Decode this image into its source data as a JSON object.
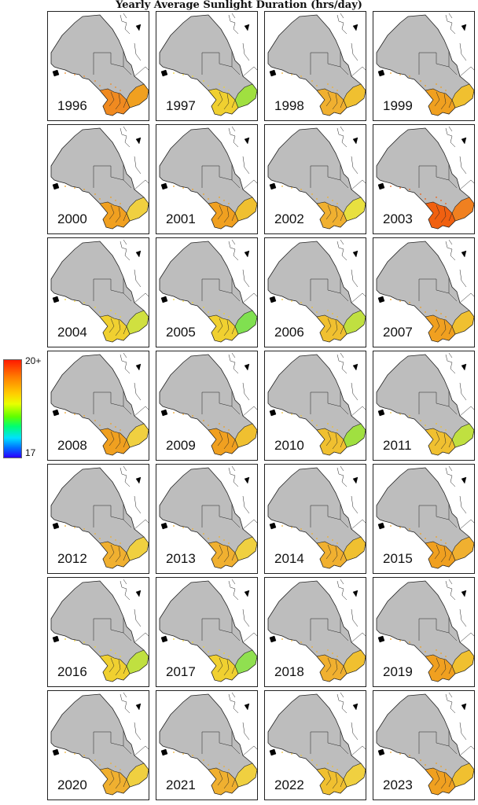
{
  "title": "Yearly Average Sunlight Duration (hrs/day)",
  "legend": {
    "max_label": "20+",
    "min_label": "17",
    "colorscale": [
      "#2a00ff",
      "#0070ff",
      "#00e0ff",
      "#00ff70",
      "#60ff00",
      "#e8ff00",
      "#ffd000",
      "#ff8000",
      "#ff1a00"
    ]
  },
  "map": {
    "land_color": "#bdbdbd",
    "border_color": "#222222"
  },
  "panels": [
    {
      "year": "1996",
      "south_color": "#f08a20",
      "east_color": "#f0a020"
    },
    {
      "year": "1997",
      "south_color": "#f0d030",
      "east_color": "#a0e040"
    },
    {
      "year": "1998",
      "south_color": "#f0b030",
      "east_color": "#f0c030"
    },
    {
      "year": "1999",
      "south_color": "#f0a020",
      "east_color": "#f0c030"
    },
    {
      "year": "2000",
      "south_color": "#f0a020",
      "east_color": "#f0d040"
    },
    {
      "year": "2001",
      "south_color": "#f0a020",
      "east_color": "#f0c030"
    },
    {
      "year": "2002",
      "south_color": "#f0b030",
      "east_color": "#e8e040"
    },
    {
      "year": "2003",
      "south_color": "#f06010",
      "east_color": "#f08020"
    },
    {
      "year": "2004",
      "south_color": "#f0d030",
      "east_color": "#d0e040"
    },
    {
      "year": "2005",
      "south_color": "#f0d030",
      "east_color": "#80e050"
    },
    {
      "year": "2006",
      "south_color": "#f0c030",
      "east_color": "#c0e040"
    },
    {
      "year": "2007",
      "south_color": "#f0a020",
      "east_color": "#f0c030"
    },
    {
      "year": "2008",
      "south_color": "#f0a020",
      "east_color": "#f0d040"
    },
    {
      "year": "2009",
      "south_color": "#f0a020",
      "east_color": "#f0c030"
    },
    {
      "year": "2010",
      "south_color": "#f0c030",
      "east_color": "#a0e040"
    },
    {
      "year": "2011",
      "south_color": "#f0c030",
      "east_color": "#c0e040"
    },
    {
      "year": "2012",
      "south_color": "#f0b030",
      "east_color": "#f0d040"
    },
    {
      "year": "2013",
      "south_color": "#f0b030",
      "east_color": "#f0d040"
    },
    {
      "year": "2014",
      "south_color": "#f0b030",
      "east_color": "#f0c030"
    },
    {
      "year": "2015",
      "south_color": "#f0a020",
      "east_color": "#f0b030"
    },
    {
      "year": "2016",
      "south_color": "#f0d030",
      "east_color": "#c0e040"
    },
    {
      "year": "2017",
      "south_color": "#f0d030",
      "east_color": "#90e050"
    },
    {
      "year": "2018",
      "south_color": "#f0b030",
      "east_color": "#f0c030"
    },
    {
      "year": "2019",
      "south_color": "#f0a020",
      "east_color": "#f0c030"
    },
    {
      "year": "2020",
      "south_color": "#f0b030",
      "east_color": "#f0d040"
    },
    {
      "year": "2021",
      "south_color": "#f0b030",
      "east_color": "#f0d040"
    },
    {
      "year": "2022",
      "south_color": "#f0c030",
      "east_color": "#f0d040"
    },
    {
      "year": "2023",
      "south_color": "#f0a020",
      "east_color": "#f0c030"
    }
  ]
}
